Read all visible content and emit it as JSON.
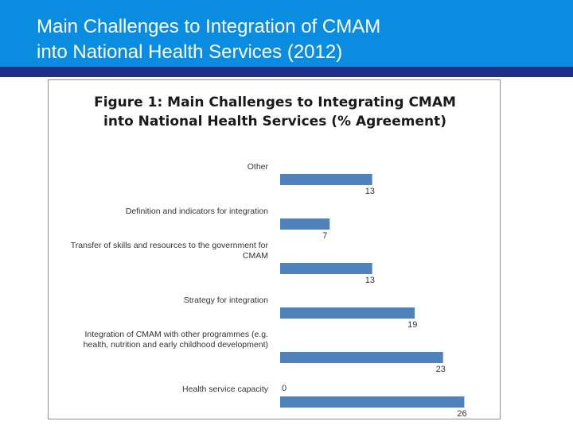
{
  "slide": {
    "title": "Main Challenges to Integration of CMAM\ninto National Health Services (2012)"
  },
  "colors": {
    "title_bar": "#0a8de0",
    "title_rule": "#1f2f86",
    "bar": "#4f81bd"
  },
  "chart_data": {
    "type": "bar",
    "orientation": "horizontal",
    "title": "Figure 1: Main Challenges to Integrating CMAM\ninto National Health Services (% Agreement)",
    "xlabel": "",
    "ylabel": "",
    "categories": [
      "Other",
      "Definition and indicators for integration",
      "Transfer of skills and resources to the government for\nCMAM",
      "Strategy for integration",
      "Integration of CMAM with other programmes (e.g.\nhealth, nutrition and early childhood development)",
      "Health service capacity"
    ],
    "series": [
      {
        "values": [
          0,
          0,
          0,
          0,
          0,
          0
        ],
        "value_labels": [
          "",
          "",
          "",
          "",
          "",
          "0"
        ]
      },
      {
        "values": [
          13,
          7,
          13,
          19,
          23,
          26
        ],
        "value_labels": [
          "13",
          "7",
          "13",
          "19",
          "23",
          "26"
        ]
      }
    ],
    "xlim": [
      0,
      26
    ],
    "grid": false,
    "legend": "none"
  }
}
